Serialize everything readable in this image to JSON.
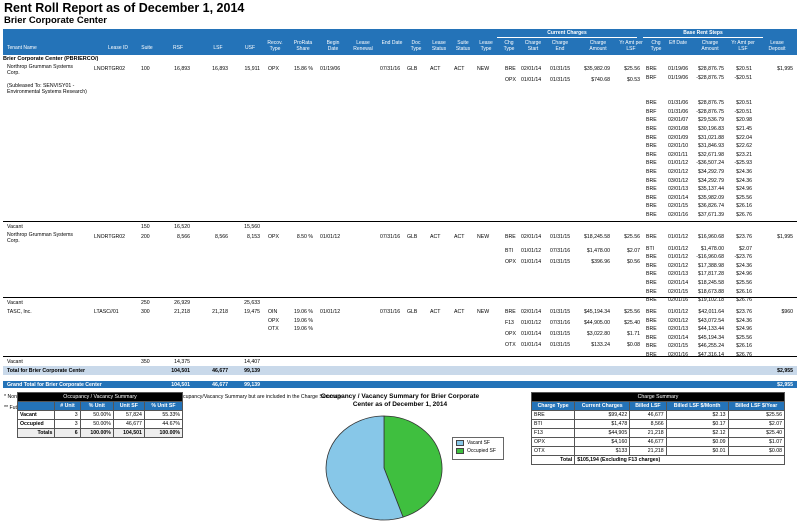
{
  "report_title": "Rent Roll Report as of December 1, 2014",
  "property_title": "Brier Corporate Center",
  "headers": {
    "group_current": "Current Charges",
    "group_base": "Base Rent Steps",
    "tenant_name": "Tenant Name",
    "lease_id": "Lease ID",
    "suite": "Suite",
    "rsf": "RSF",
    "lsf": "LSF",
    "usf": "USF",
    "recov_type": "Recov. Type",
    "prorata": "ProRata Share",
    "begin_date": "Begin Date",
    "lease_renewal": "Lease Renewal",
    "end_date": "End Date",
    "doc_type": "Doc Type",
    "lease_status": "Lease Status",
    "suite_status": "Suite Status",
    "lease_type": "Lease Type",
    "chg_type": "Chg Type",
    "charge_start": "Charge Start",
    "charge_end": "Charge End",
    "charge_amount": "Charge Amount",
    "yr_amt_lsf": "Yr Amt per LSF",
    "chg_type2": "Chg Type",
    "eff_date": "Eff Date",
    "charge_amount2": "Charge Amount",
    "yr_amt_lsf2": "Yr Amt per LSF",
    "lease_deposit": "Lease Deposit"
  },
  "section_label": "Brier Corporate Center (PBRIERCO/)",
  "t1": {
    "name": "Northrop Grumman Systems Corp.",
    "sublease": "(Subleased To: SENVISY01 - Environmental Systems Research)",
    "lease_id": "LNORTGR02",
    "suite": "100",
    "rsf": "16,893",
    "lsf": "16,893",
    "usf": "15,911",
    "recov": "OPX",
    "prorata": "15.86 %",
    "begin": "01/19/06",
    "end": "07/31/16",
    "doc": "GLB",
    "lstatus": "ACT",
    "sstatus": "ACT",
    "ltype": "NEW",
    "deposit": "$1,995",
    "charges": [
      [
        "BRE",
        "02/01/14",
        "01/31/15",
        "$35,982.09",
        "$25.56"
      ],
      [
        "OPX",
        "01/01/14",
        "01/31/15",
        "$740.68",
        "$0.53"
      ]
    ],
    "steps": [
      [
        "BRE",
        "01/19/06",
        "$28,876.75",
        "$20.51"
      ],
      [
        "BRF",
        "01/19/06",
        "-$28,876.75",
        "-$20.51"
      ],
      [
        "BRE",
        "01/31/06",
        "$28,876.75",
        "$20.51"
      ],
      [
        "BRF",
        "01/31/06",
        "-$28,876.75",
        "-$20.51"
      ],
      [
        "BRE",
        "02/01/07",
        "$29,536.79",
        "$20.98"
      ],
      [
        "BRE",
        "02/01/08",
        "$30,196.83",
        "$21.45"
      ],
      [
        "BRE",
        "02/01/09",
        "$31,021.88",
        "$22.04"
      ],
      [
        "BRE",
        "02/01/10",
        "$31,846.93",
        "$22.62"
      ],
      [
        "BRE",
        "02/01/11",
        "$32,671.98",
        "$23.21"
      ],
      [
        "BRE",
        "01/01/12",
        "-$36,507.24",
        "-$25.93"
      ],
      [
        "BRE",
        "02/01/12",
        "$34,292.79",
        "$24.36"
      ],
      [
        "BRE",
        "03/01/12",
        "$34,292.79",
        "$24.36"
      ],
      [
        "BRE",
        "02/01/13",
        "$35,137.44",
        "$24.96"
      ],
      [
        "BRE",
        "02/01/14",
        "$35,982.09",
        "$25.56"
      ],
      [
        "BRE",
        "02/01/15",
        "$36,826.74",
        "$26.16"
      ],
      [
        "BRE",
        "02/01/16",
        "$37,671.39",
        "$26.76"
      ]
    ]
  },
  "vacant1": {
    "label": "Vacant",
    "suite": "150",
    "rsf": "16,520",
    "usf": "15,560"
  },
  "t2": {
    "name": "Northrop Grumman Systems Corp.",
    "lease_id": "LNORTGR02",
    "suite": "200",
    "rsf": "8,566",
    "lsf": "8,566",
    "usf": "8,153",
    "recov": "OPX",
    "prorata": "8.50 %",
    "begin": "01/01/12",
    "end": "07/31/16",
    "doc": "GLB",
    "lstatus": "ACT",
    "sstatus": "ACT",
    "ltype": "NEW",
    "deposit": "$1,995",
    "charges": [
      [
        "BRE",
        "02/01/14",
        "01/31/15",
        "$18,245.58",
        "$25.56"
      ],
      [
        "BTI",
        "01/01/12",
        "07/31/16",
        "$1,478.00",
        "$2.07"
      ],
      [
        "OPX",
        "01/01/14",
        "01/31/15",
        "$396.96",
        "$0.56"
      ]
    ],
    "steps": [
      [
        "BRE",
        "01/01/12",
        "$16,960.68",
        "$23.76"
      ],
      [
        "BTI",
        "01/01/12",
        "$1,478.00",
        "$2.07"
      ],
      [
        "BRE",
        "01/01/12",
        "-$16,960.68",
        "-$23.76"
      ],
      [
        "BRE",
        "02/01/12",
        "$17,388.98",
        "$24.36"
      ],
      [
        "BRE",
        "02/01/13",
        "$17,817.28",
        "$24.96"
      ],
      [
        "BRE",
        "02/01/14",
        "$18,245.58",
        "$25.56"
      ],
      [
        "BRE",
        "02/01/15",
        "$18,673.88",
        "$26.16"
      ],
      [
        "BRE",
        "02/01/16",
        "$19,102.18",
        "$26.76"
      ]
    ]
  },
  "vacant2": {
    "label": "Vacant",
    "suite": "250",
    "rsf": "26,929",
    "usf": "25,633"
  },
  "t3": {
    "name": "TASC, Inc.",
    "lease_id": "LTASC//01",
    "suite": "300",
    "rsf": "21,218",
    "lsf": "21,218",
    "usf": "19,475",
    "recovs": [
      [
        "OIN",
        "19.06 %"
      ],
      [
        "OPX",
        "19.06 %"
      ],
      [
        "OTX",
        "19.06 %"
      ]
    ],
    "begin": "01/01/12",
    "end": "07/31/16",
    "doc": "GLB",
    "lstatus": "ACT",
    "sstatus": "ACT",
    "ltype": "NEW",
    "deposit": "$960",
    "charges": [
      [
        "BRE",
        "02/01/14",
        "01/31/15",
        "$45,194.34",
        "$25.56"
      ],
      [
        "F13",
        "01/01/12",
        "07/31/16",
        "$44,905.00",
        "$25.40"
      ],
      [
        "OPX",
        "01/01/14",
        "01/31/15",
        "$3,022.80",
        "$1.71"
      ],
      [
        "OTX",
        "01/01/14",
        "01/31/15",
        "$133.24",
        "$0.08"
      ]
    ],
    "steps": [
      [
        "BRE",
        "01/01/12",
        "$42,011.64",
        "$23.76"
      ],
      [
        "BRE",
        "02/01/12",
        "$43,072.54",
        "$24.36"
      ],
      [
        "BRE",
        "02/01/13",
        "$44,133.44",
        "$24.96"
      ],
      [
        "BRE",
        "02/01/14",
        "$45,194.34",
        "$25.56"
      ],
      [
        "BRE",
        "02/01/15",
        "$46,255.24",
        "$26.16"
      ],
      [
        "BRE",
        "02/01/16",
        "$47,316.14",
        "$26.76"
      ]
    ]
  },
  "vacant3": {
    "label": "Vacant",
    "suite": "350",
    "rsf": "14,375",
    "usf": "14,407"
  },
  "total_prop": {
    "label": "Total for Brier Corporate Center",
    "rsf": "104,501",
    "lsf": "46,677",
    "usf": "99,139",
    "deposit": "$2,955"
  },
  "grand_total": {
    "label": "Grand Total for Brier Corporate Center",
    "rsf": "104,501",
    "lsf": "46,677",
    "usf": "99,139",
    "deposit": "$2,955"
  },
  "notes": [
    "* Non-Statistical units are excluded from the above sub-totals and from the Occupancy/Vacancy Summary but are included in the Charge Summary.",
    "** Future Lease"
  ],
  "occupancy": {
    "title": "Occupancy / Vacancy Summary",
    "cols": [
      "# Unit",
      "% Unit",
      "Unit SF",
      "% Unit SF"
    ],
    "rows": [
      [
        "Vacant",
        "3",
        "50.00%",
        "57,824",
        "55.33%"
      ],
      [
        "Occupied",
        "3",
        "50.00%",
        "46,677",
        "44.67%"
      ],
      [
        "Totals",
        "6",
        "100.00%",
        "104,501",
        "100.00%"
      ]
    ]
  },
  "pie": {
    "title": "Occupancy / Vacancy Summary for Brier Corporate Center as of December 1, 2014",
    "vacant_label": "Vacant SF",
    "occupied_label": "Occupied SF",
    "vacant_color": "#87c7e8",
    "occupied_color": "#3fbf3f",
    "vacant_sf": 57824,
    "occupied_sf": 46677
  },
  "charge_summary": {
    "title": "Charge Summary",
    "cols": [
      "Charge Type",
      "Current Charges",
      "Billed LSF",
      "Billed LSF $/Month",
      "Billed LSF $/Year"
    ],
    "rows": [
      [
        "BRE",
        "$99,422",
        "46,677",
        "$2.13",
        "$25.56"
      ],
      [
        "BTI",
        "$1,478",
        "8,566",
        "$0.17",
        "$2.07"
      ],
      [
        "F13",
        "$44,905",
        "21,218",
        "$2.12",
        "$25.40"
      ],
      [
        "OPX",
        "$4,160",
        "46,677",
        "$0.09",
        "$1.07"
      ],
      [
        "OTX",
        "$133",
        "21,218",
        "$0.01",
        "$0.08"
      ]
    ],
    "total_label": "Total",
    "total_value": "$105,194",
    "total_note": "(Excluding F13 charges)"
  }
}
